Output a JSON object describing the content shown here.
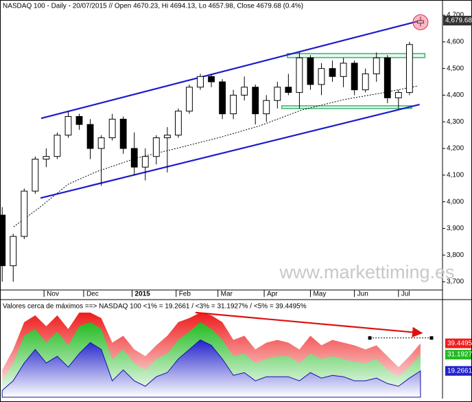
{
  "chart_data": [
    {
      "type": "candlestick",
      "title": "NASDAQ 100 - Daily - 20/07/2015 // Open 4670.23, Hi 4694.13, Lo 4657.98, Close 4679.68 (0.4%)",
      "x": [
        0,
        5,
        10,
        15,
        20,
        25,
        30,
        35,
        40,
        45,
        50,
        55,
        60,
        65,
        70,
        75,
        80,
        85,
        90,
        95,
        100,
        105,
        110,
        115,
        120,
        125,
        130,
        135,
        140,
        145,
        150,
        155,
        160,
        165,
        170,
        175,
        180,
        185,
        190
      ],
      "open": [
        3950,
        3760,
        3870,
        4040,
        4160,
        4170,
        4250,
        4320,
        4290,
        4200,
        4240,
        4310,
        4200,
        4130,
        4170,
        4240,
        4250,
        4340,
        4430,
        4470,
        4450,
        4330,
        4400,
        4430,
        4330,
        4380,
        4430,
        4410,
        4540,
        4440,
        4500,
        4470,
        4520,
        4420,
        4480,
        4540,
        4390,
        4410,
        4670.23
      ],
      "high": [
        3980,
        3880,
        4050,
        4170,
        4200,
        4260,
        4340,
        4330,
        4310,
        4250,
        4330,
        4320,
        4260,
        4200,
        4250,
        4280,
        4350,
        4440,
        4480,
        4480,
        4460,
        4420,
        4470,
        4440,
        4400,
        4450,
        4480,
        4560,
        4550,
        4520,
        4530,
        4540,
        4530,
        4500,
        4560,
        4550,
        4420,
        4600,
        4694.13
      ],
      "low": [
        3700,
        3700,
        3860,
        4030,
        4130,
        4160,
        4240,
        4270,
        4160,
        4060,
        4230,
        4180,
        4100,
        4080,
        4140,
        4110,
        4240,
        4330,
        4420,
        4430,
        4310,
        4310,
        4380,
        4290,
        4300,
        4350,
        4400,
        4350,
        4420,
        4400,
        4450,
        4430,
        4400,
        4410,
        4450,
        4370,
        4350,
        4400,
        4657.98
      ],
      "close": [
        3760,
        3870,
        4040,
        4160,
        4170,
        4250,
        4320,
        4290,
        4200,
        4240,
        4310,
        4200,
        4130,
        4170,
        4240,
        4250,
        4340,
        4430,
        4470,
        4450,
        4330,
        4400,
        4430,
        4330,
        4380,
        4430,
        4410,
        4540,
        4440,
        4500,
        4470,
        4520,
        4420,
        4480,
        4540,
        4390,
        4410,
        4590,
        4679.68
      ],
      "up_color": "#ffffff",
      "down_color": "#000000",
      "xlim": [
        -1,
        200
      ],
      "xticks": [
        {
          "value": 19,
          "label": "Nov"
        },
        {
          "value": 37,
          "label": "Dec"
        },
        {
          "value": 59,
          "label": "2015"
        },
        {
          "value": 79,
          "label": "Feb"
        },
        {
          "value": 98,
          "label": "Mar"
        },
        {
          "value": 119,
          "label": "Apr"
        },
        {
          "value": 140,
          "label": "May"
        },
        {
          "value": 160,
          "label": "Jun"
        },
        {
          "value": 180,
          "label": "Jul"
        }
      ],
      "ylim": [
        3669,
        4757
      ],
      "yticks": [
        {
          "value": 3700,
          "label": "3,700"
        },
        {
          "value": 3800,
          "label": "3,800"
        },
        {
          "value": 3900,
          "label": "3,900"
        },
        {
          "value": 4000,
          "label": "4,000"
        },
        {
          "value": 4100,
          "label": "4,100"
        },
        {
          "value": 4200,
          "label": "4,200"
        },
        {
          "value": 4300,
          "label": "4,300"
        },
        {
          "value": 4400,
          "label": "4,400"
        },
        {
          "value": 4500,
          "label": "4,500"
        },
        {
          "value": 4600,
          "label": "4,600"
        },
        {
          "value": 4700,
          "label": "4,700"
        }
      ],
      "last_price": {
        "value": 4679.68,
        "label": "4,679.68"
      },
      "lines": [
        {
          "color": "#000000",
          "dashed": true,
          "x": [
            5.2,
            17.7,
            30,
            42.6,
            61,
            80,
            98.7,
            117,
            136,
            155,
            173,
            189
          ],
          "values": [
            3906,
            3983,
            4066,
            4112,
            4164,
            4202,
            4241,
            4285,
            4344,
            4383,
            4409,
            4435
          ]
        },
        {
          "color": "#1a1acc",
          "x": [
            17.7,
            189.6
          ],
          "values": [
            4313,
            4679
          ]
        },
        {
          "color": "#1a1acc",
          "x": [
            17.4,
            189.6
          ],
          "values": [
            4014,
            4365
          ]
        }
      ],
      "zones": [
        {
          "color": "#3cb371",
          "x": [
            129.5,
            192
          ],
          "values": [
            4541,
            4556
          ]
        },
        {
          "color": "#3cb371",
          "x": [
            127,
            186
          ],
          "values": [
            4350,
            4360
          ]
        }
      ],
      "annotation": "www.markettiming.es"
    },
    {
      "type": "area",
      "title": "Valores cerca de máximos ==> NASDAQ 100 <1% = 19.2661 / <3% = 31.1927% / <5% = 39.4495%",
      "x": [
        0,
        5,
        10,
        15,
        20,
        25,
        30,
        35,
        40,
        45,
        50,
        55,
        60,
        65,
        70,
        75,
        80,
        85,
        90,
        95,
        100,
        105,
        110,
        115,
        120,
        125,
        130,
        135,
        140,
        145,
        150,
        155,
        160,
        165,
        170,
        175,
        180,
        185,
        190
      ],
      "series": [
        {
          "color": "#ee1c1c",
          "values": [
            20,
            35,
            55,
            60,
            52,
            60,
            50,
            62,
            62,
            58,
            40,
            45,
            35,
            30,
            38,
            45,
            55,
            58,
            62,
            60,
            55,
            42,
            45,
            35,
            40,
            42,
            40,
            35,
            45,
            38,
            42,
            40,
            38,
            35,
            38,
            30,
            22,
            30,
            39.4495
          ]
        },
        {
          "color": "#22bb22",
          "values": [
            12,
            25,
            45,
            50,
            40,
            48,
            38,
            52,
            55,
            50,
            28,
            35,
            25,
            20,
            28,
            32,
            42,
            48,
            55,
            50,
            42,
            30,
            32,
            25,
            28,
            30,
            30,
            25,
            32,
            28,
            30,
            28,
            26,
            25,
            28,
            20,
            15,
            22,
            31.1927
          ]
        },
        {
          "color": "#2222cc",
          "values": [
            5,
            12,
            25,
            35,
            25,
            30,
            22,
            32,
            40,
            35,
            12,
            20,
            12,
            8,
            15,
            18,
            28,
            35,
            42,
            38,
            28,
            16,
            18,
            12,
            15,
            15,
            15,
            12,
            18,
            14,
            16,
            15,
            12,
            12,
            14,
            10,
            8,
            14,
            19.2661
          ]
        }
      ],
      "xlim": [
        -1,
        200
      ],
      "ylim": [
        0,
        71
      ],
      "lines": [
        {
          "color": "#dd1111",
          "arrow": true,
          "x": [
            87.8,
            190.6
          ],
          "values": [
            62,
            47
          ]
        },
        {
          "color": "#000000",
          "dashed": true,
          "x": [
            167,
            195
          ],
          "values": [
            43.4,
            43.4
          ]
        }
      ]
    }
  ]
}
